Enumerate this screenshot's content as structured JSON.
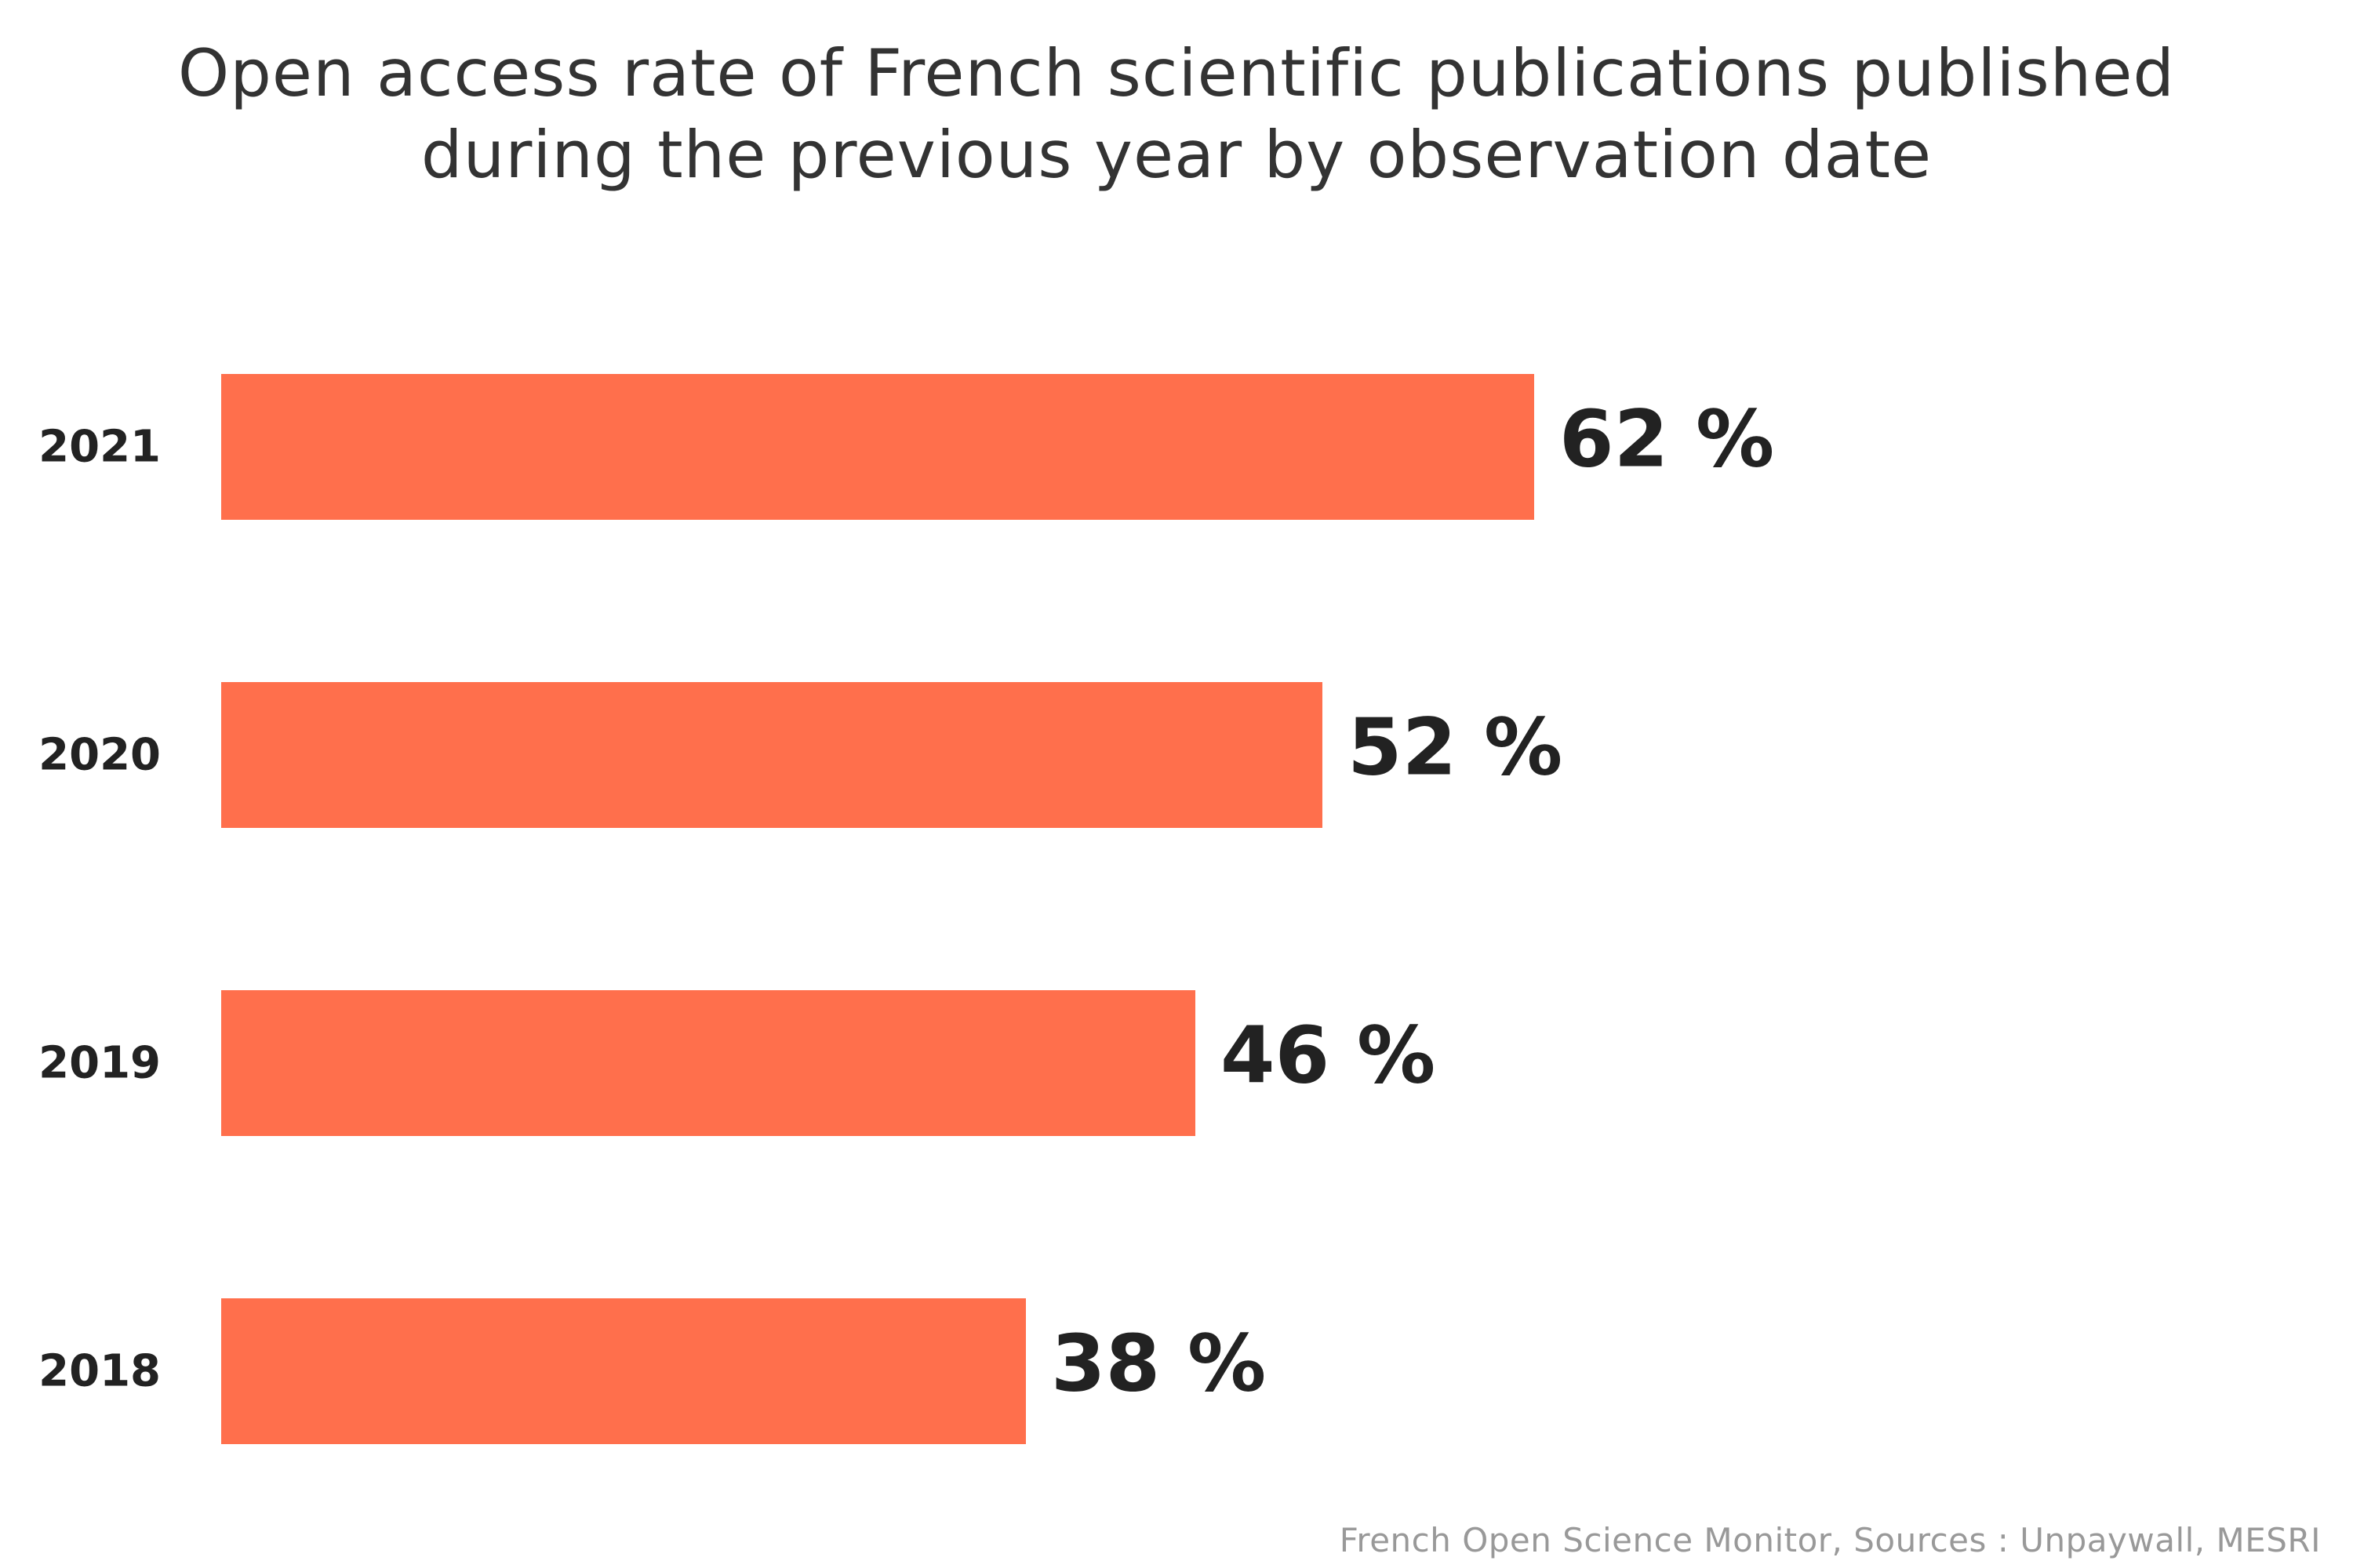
{
  "chart_data": {
    "type": "bar",
    "orientation": "horizontal",
    "title_lines": [
      "Open access rate of French scientific publications published",
      "during the previous year by observation date"
    ],
    "categories": [
      "2021",
      "2020",
      "2019",
      "2018"
    ],
    "values": [
      62,
      52,
      46,
      38
    ],
    "value_labels": [
      "62 %",
      "52 %",
      "46 %",
      "38 %"
    ],
    "unit": "%",
    "xlim": [
      0,
      100
    ],
    "grid": false,
    "legend": "none",
    "bar_color": "#ff6f4c"
  },
  "footer": {
    "credit": "French Open Science Monitor, Sources : Unpaywall, MESRI"
  }
}
